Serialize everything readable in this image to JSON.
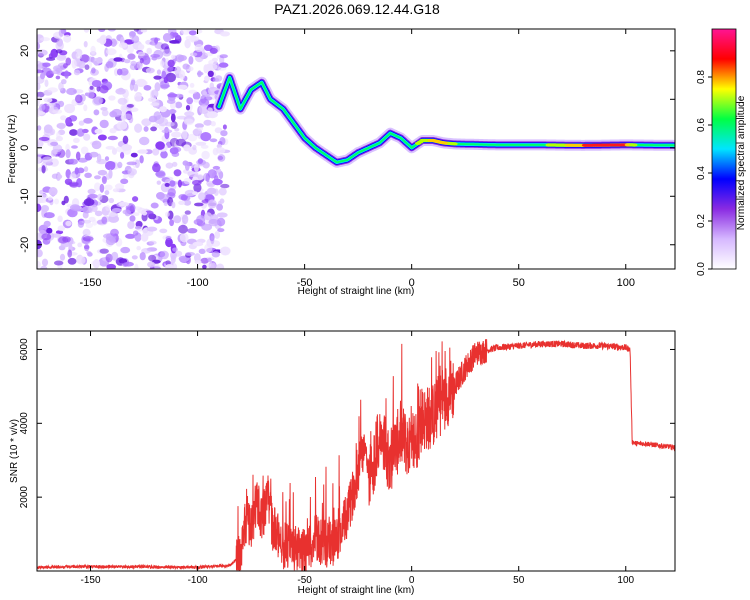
{
  "title": "PAZ1.2026.069.12.44.G18",
  "colors": {
    "snr_line": "#e8312f",
    "signal_core": "#ff2020",
    "speckle": "#7a2ff0"
  },
  "chart_data": [
    {
      "type": "heatmap",
      "name": "spectrogram",
      "xlabel": "Height of straight line (km)",
      "ylabel": "Frequency (Hz)",
      "xlim": [
        -175,
        123
      ],
      "ylim": [
        -25,
        24.5
      ],
      "xticks": [
        -150,
        -100,
        -50,
        0,
        50,
        100
      ],
      "yticks": [
        -20,
        -10,
        0,
        10,
        20
      ],
      "colorbar": {
        "label": "Normalized spectral amplitude",
        "range": [
          0,
          1
        ],
        "ticks": [
          0.0,
          0.2,
          0.4,
          0.6,
          0.8
        ],
        "tick_labels": [
          "0.0",
          "0.2",
          "0.4",
          "0.6",
          "0.8"
        ],
        "colormap": [
          "#ffffff",
          "#d6b8ff",
          "#8a2be2",
          "#0000ff",
          "#00e5ff",
          "#00ff44",
          "#ffff00",
          "#ff0000",
          "#ff1493"
        ]
      },
      "noise_region_x": [
        -175,
        -90
      ],
      "signal_track": [
        {
          "x": -90,
          "y": 8.5
        },
        {
          "x": -85,
          "y": 14.5
        },
        {
          "x": -80,
          "y": 8
        },
        {
          "x": -75,
          "y": 12
        },
        {
          "x": -70,
          "y": 13.5
        },
        {
          "x": -66,
          "y": 10
        },
        {
          "x": -60,
          "y": 8
        },
        {
          "x": -55,
          "y": 5
        },
        {
          "x": -50,
          "y": 2
        },
        {
          "x": -45,
          "y": 0
        },
        {
          "x": -40,
          "y": -1.5
        },
        {
          "x": -35,
          "y": -3
        },
        {
          "x": -30,
          "y": -2.5
        },
        {
          "x": -25,
          "y": -1
        },
        {
          "x": -20,
          "y": 0
        },
        {
          "x": -15,
          "y": 1
        },
        {
          "x": -10,
          "y": 3
        },
        {
          "x": -5,
          "y": 2
        },
        {
          "x": 0,
          "y": 0
        },
        {
          "x": 5,
          "y": 1.5
        },
        {
          "x": 10,
          "y": 1.5
        },
        {
          "x": 15,
          "y": 1
        },
        {
          "x": 20,
          "y": 0.8
        },
        {
          "x": 40,
          "y": 0.6
        },
        {
          "x": 60,
          "y": 0.6
        },
        {
          "x": 80,
          "y": 0.5
        },
        {
          "x": 100,
          "y": 0.6
        },
        {
          "x": 123,
          "y": 0.5
        }
      ],
      "signal_amplitude": [
        {
          "x": -90,
          "a": 0.35
        },
        {
          "x": -70,
          "a": 0.4
        },
        {
          "x": -50,
          "a": 0.35
        },
        {
          "x": -30,
          "a": 0.4
        },
        {
          "x": -10,
          "a": 0.5
        },
        {
          "x": 0,
          "a": 0.55
        },
        {
          "x": 15,
          "a": 0.85
        },
        {
          "x": 20,
          "a": 0.6
        },
        {
          "x": 40,
          "a": 0.55
        },
        {
          "x": 60,
          "a": 0.55
        },
        {
          "x": 75,
          "a": 0.75
        },
        {
          "x": 85,
          "a": 0.95
        },
        {
          "x": 100,
          "a": 0.9
        },
        {
          "x": 105,
          "a": 0.55
        },
        {
          "x": 123,
          "a": 0.5
        }
      ]
    },
    {
      "type": "line",
      "name": "snr",
      "xlabel": "Height of straight line (km)",
      "ylabel": "SNR (10 * v/v)",
      "xlim": [
        -175,
        123
      ],
      "ylim": [
        0,
        6500
      ],
      "xticks": [
        -150,
        -100,
        -50,
        0,
        50,
        100
      ],
      "yticks": [
        2000,
        4000,
        6000
      ],
      "series": [
        {
          "name": "SNR",
          "x": [
            -175,
            -150,
            -125,
            -100,
            -85,
            -80,
            -77,
            -75,
            -72,
            -70,
            -67,
            -65,
            -62,
            -60,
            -55,
            -50,
            -45,
            -40,
            -35,
            -30,
            -25,
            -22,
            -20,
            -15,
            -10,
            -5,
            0,
            5,
            10,
            15,
            20,
            25,
            30,
            40,
            50,
            60,
            70,
            80,
            90,
            100,
            102,
            103,
            105,
            110,
            115,
            123
          ],
          "y": [
            100,
            120,
            110,
            100,
            150,
            400,
            1500,
            1200,
            1900,
            1400,
            2000,
            1200,
            900,
            700,
            600,
            500,
            900,
            700,
            800,
            1500,
            2700,
            3500,
            2500,
            3600,
            3000,
            3700,
            3200,
            4100,
            4200,
            4700,
            5000,
            5500,
            5900,
            6050,
            6100,
            6150,
            6150,
            6100,
            6100,
            6050,
            6000,
            3500,
            3450,
            3450,
            3400,
            3350
          ]
        }
      ]
    }
  ]
}
